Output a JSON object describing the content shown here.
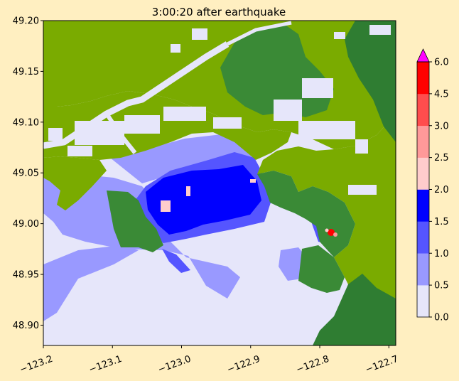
{
  "chart_data": {
    "type": "heatmap",
    "title": "3:00:20 after earthquake",
    "xlim": [
      -123.2,
      -122.69
    ],
    "ylim": [
      48.88,
      49.2
    ],
    "xticks": [
      -123.2,
      -123.1,
      -123.0,
      -122.9,
      -122.8,
      -122.7
    ],
    "xtick_labels": [
      "−123.2",
      "−123.1",
      "−123.0",
      "−122.9",
      "−122.8",
      "−122.7"
    ],
    "yticks": [
      48.9,
      48.95,
      49.0,
      49.05,
      49.1,
      49.15,
      49.2
    ],
    "ytick_labels": [
      "48.90",
      "48.95",
      "49.00",
      "49.05",
      "49.10",
      "49.15",
      "49.20"
    ],
    "colorbar": {
      "boundaries": [
        0.0,
        0.5,
        1.0,
        1.5,
        2.0,
        2.5,
        3.0,
        4.5,
        6.0
      ],
      "tick_labels": [
        "0.0",
        "0.5",
        "1.0",
        "1.5",
        "2.0",
        "2.5",
        "3.0",
        "4.5",
        "6.0"
      ],
      "colors": [
        "#e6e6fa",
        "#9999ff",
        "#5555ff",
        "#0000ff",
        "#ffcccc",
        "#ff9999",
        "#ff4d4d",
        "#ff0000"
      ],
      "extend_color": "#ff00ff",
      "extend": "max"
    },
    "land_colors": [
      "#7aab00",
      "#3a8a36",
      "#2f7d32"
    ],
    "water_background": "#e6e6fa"
  }
}
